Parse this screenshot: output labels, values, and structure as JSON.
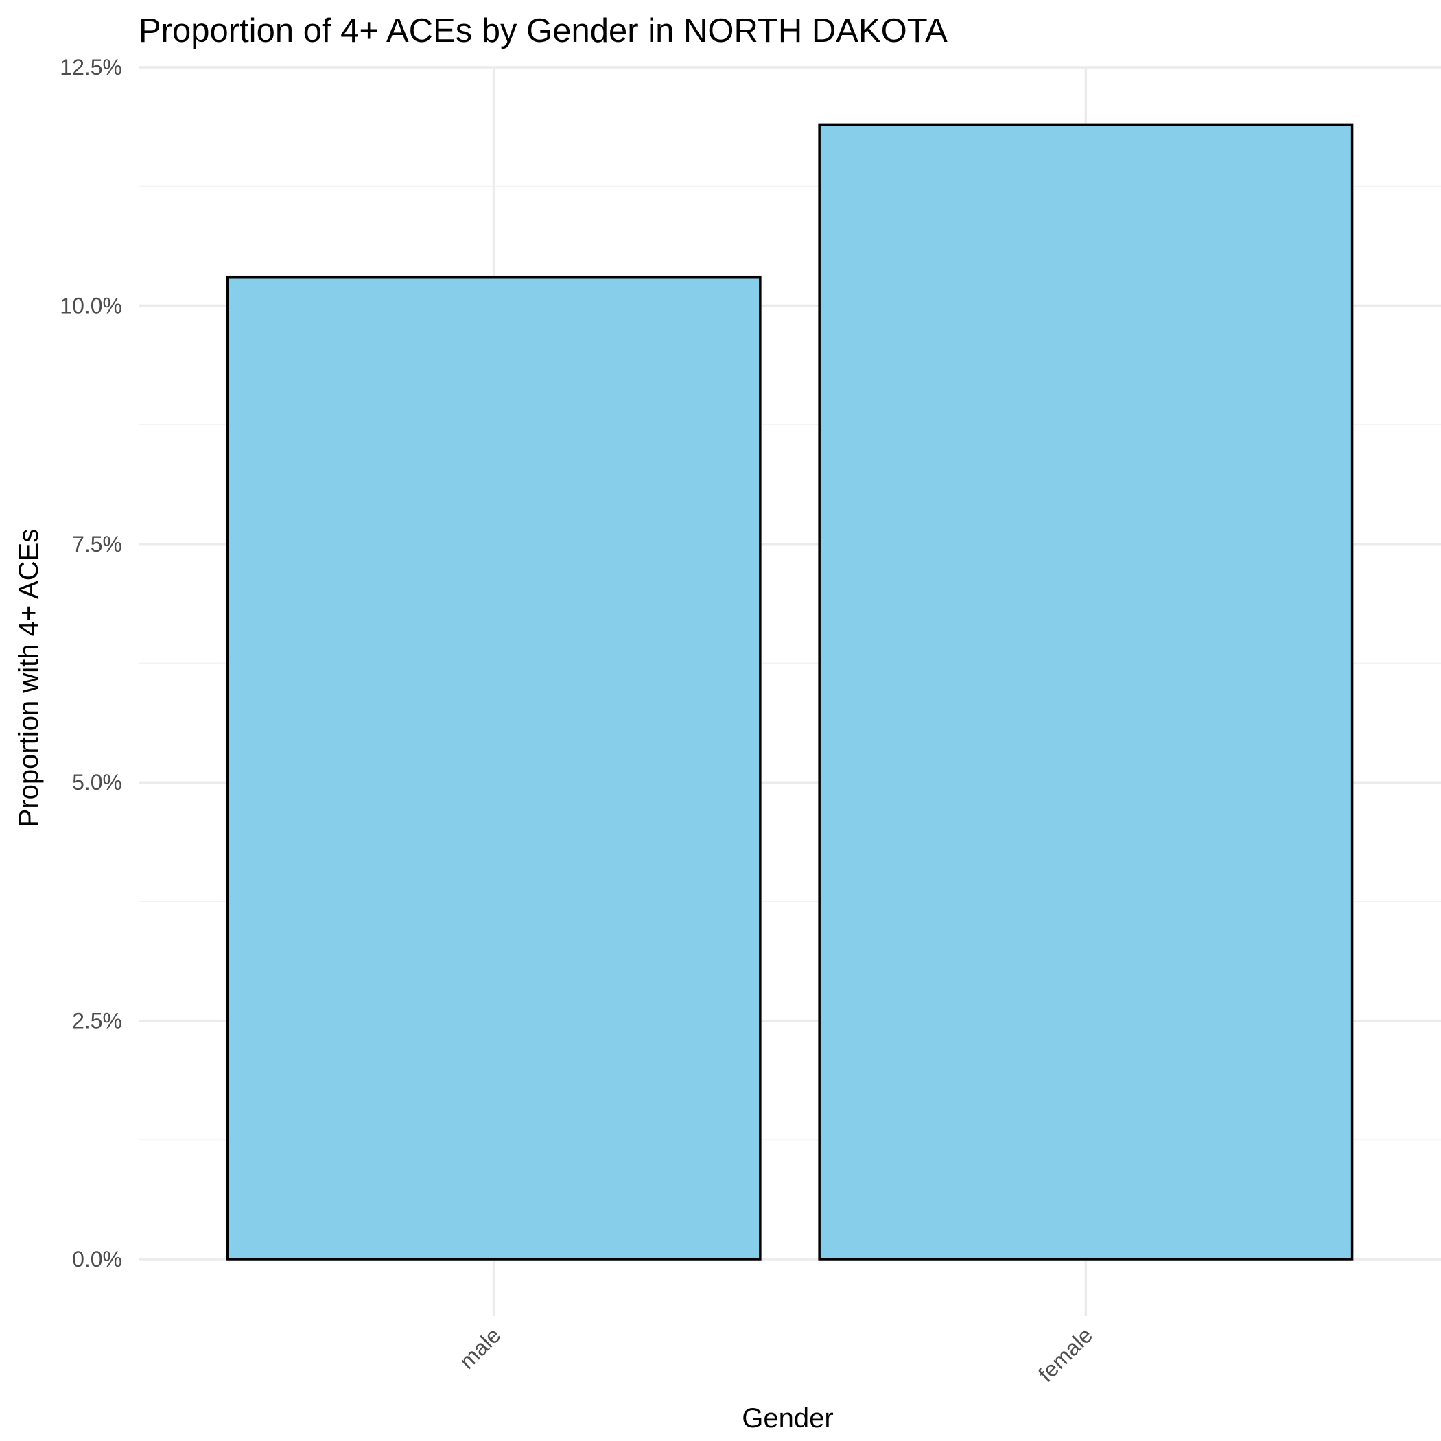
{
  "chart_data": {
    "type": "bar",
    "title": "Proportion of 4+ ACEs by Gender in NORTH DAKOTA",
    "xlabel": "Gender",
    "ylabel": "Proportion with 4+ ACEs",
    "categories": [
      "male",
      "female"
    ],
    "values": [
      0.103,
      0.119
    ],
    "ylim": [
      0,
      0.125
    ],
    "yticks": [
      {
        "value": 0.0,
        "label": "0.0%"
      },
      {
        "value": 0.025,
        "label": "2.5%"
      },
      {
        "value": 0.05,
        "label": "5.0%"
      },
      {
        "value": 0.075,
        "label": "7.5%"
      },
      {
        "value": 0.1,
        "label": "10.0%"
      },
      {
        "value": 0.125,
        "label": "12.5%"
      }
    ],
    "grid": true,
    "legend": "none",
    "colors": {
      "bar_fill": "#87CEEB",
      "bar_stroke": "#000000",
      "grid_major": "#ebebeb",
      "grid_minor": "#f3f3f3"
    }
  }
}
